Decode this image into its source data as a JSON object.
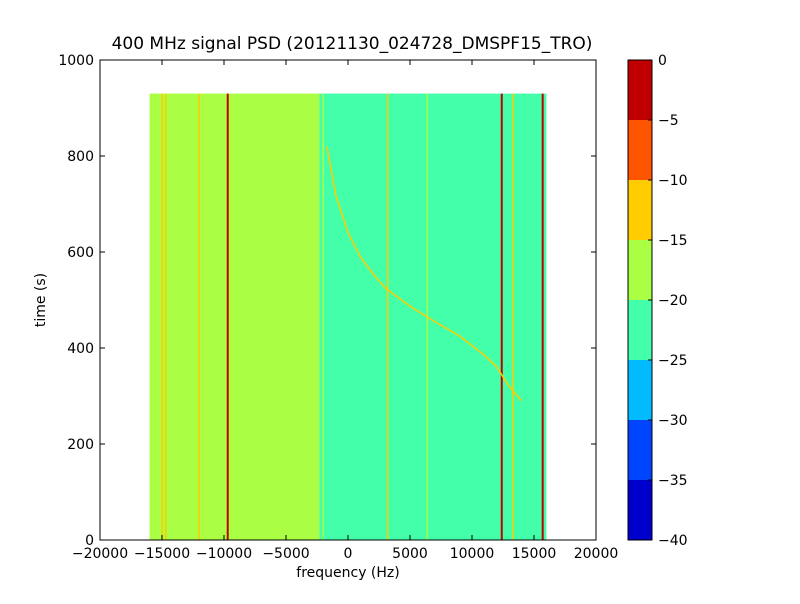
{
  "chart_data": {
    "type": "heatmap",
    "title": "400 MHz signal PSD (20121130_024728_DMSPF15_TRO)",
    "xlabel": "frequency (Hz)",
    "ylabel": "time (s)",
    "xlim": [
      -20000,
      20000
    ],
    "ylim": [
      0,
      1000
    ],
    "x_ticks": [
      -20000,
      -15000,
      -10000,
      -5000,
      0,
      5000,
      10000,
      15000,
      20000
    ],
    "x_tick_labels": [
      "−20000",
      "−15000",
      "−10000",
      "−5000",
      "0",
      "5000",
      "10000",
      "15000",
      "20000"
    ],
    "y_ticks": [
      0,
      200,
      400,
      600,
      800,
      1000
    ],
    "y_tick_labels": [
      "0",
      "200",
      "400",
      "600",
      "800",
      "1000"
    ],
    "data_extent": {
      "x": [
        -16000,
        16000
      ],
      "y": [
        0,
        930
      ]
    },
    "background_regions": [
      {
        "x": [
          -16000,
          -2300
        ],
        "level": -18
      },
      {
        "x": [
          -2300,
          16000
        ],
        "level": -22
      }
    ],
    "vertical_lines": [
      {
        "x": -15000,
        "level": -12,
        "y": [
          0,
          930
        ]
      },
      {
        "x": -14700,
        "level": -15,
        "y": [
          0,
          930
        ]
      },
      {
        "x": -12000,
        "level": -14,
        "y": [
          0,
          930
        ]
      },
      {
        "x": -9700,
        "level": -2,
        "y": [
          0,
          930
        ]
      },
      {
        "x": -2000,
        "level": -17,
        "y": [
          0,
          930
        ]
      },
      {
        "x": 3200,
        "level": -15,
        "y": [
          0,
          930
        ]
      },
      {
        "x": 6400,
        "level": -16,
        "y": [
          0,
          930
        ]
      },
      {
        "x": 12400,
        "level": -2,
        "y": [
          0,
          930
        ]
      },
      {
        "x": 13300,
        "level": -14,
        "y": [
          0,
          930
        ]
      },
      {
        "x": 15700,
        "level": -2,
        "y": [
          0,
          930
        ]
      }
    ],
    "doppler_trace": {
      "level": -12,
      "x": [
        -1700,
        -1000,
        0,
        1000,
        2000,
        3000,
        5000,
        7000,
        9000,
        11000,
        12000,
        13000,
        14000
      ],
      "y": [
        820,
        720,
        640,
        590,
        555,
        525,
        487,
        455,
        425,
        385,
        360,
        320,
        290
      ]
    },
    "colorbar": {
      "min": -40,
      "max": 0,
      "ticks": [
        0,
        -5,
        -10,
        -15,
        -20,
        -25,
        -30,
        -35,
        -40
      ],
      "tick_labels": [
        "0",
        "−5",
        "−10",
        "−15",
        "−20",
        "−25",
        "−30",
        "−35",
        "−40"
      ],
      "bands": [
        {
          "from": -5,
          "to": 0,
          "color": "#c00000"
        },
        {
          "from": -10,
          "to": -5,
          "color": "#ff5500"
        },
        {
          "from": -15,
          "to": -10,
          "color": "#ffcc00"
        },
        {
          "from": -20,
          "to": -15,
          "color": "#aaff44"
        },
        {
          "from": -25,
          "to": -20,
          "color": "#44ffaa"
        },
        {
          "from": -30,
          "to": -25,
          "color": "#00bbff"
        },
        {
          "from": -35,
          "to": -30,
          "color": "#0044ff"
        },
        {
          "from": -40,
          "to": -35,
          "color": "#0000cc"
        }
      ]
    }
  }
}
